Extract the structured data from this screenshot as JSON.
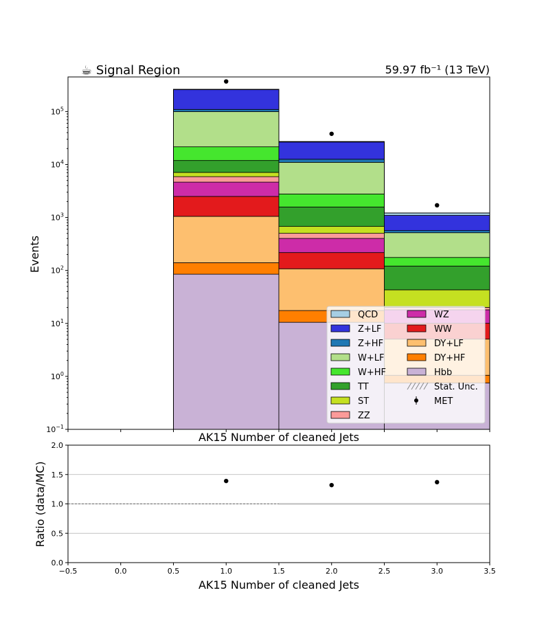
{
  "chart_data": [
    {
      "type": "bar",
      "stacked": true,
      "log_scale": true,
      "title": "☕ Signal Region",
      "lumi": "59.97 fb⁻¹ (13 TeV)",
      "xlabel": "AK15 Number of cleaned Jets",
      "ylabel": "Events",
      "ylim": [
        0.1,
        450000
      ],
      "yticks": [
        "10⁻¹",
        "10⁰",
        "10¹",
        "10²",
        "10³",
        "10⁴",
        "10⁵"
      ],
      "bin_edges": [
        0.5,
        1.5,
        2.5,
        3.5
      ],
      "bin_centers": [
        1,
        2,
        3
      ],
      "series": [
        {
          "name": "Hbb",
          "color": "#c9b2d6",
          "values": [
            85,
            10.5,
            0.75
          ]
        },
        {
          "name": "DY+HF",
          "color": "#ff7f00",
          "values": [
            55,
            7,
            0.3
          ]
        },
        {
          "name": "DY+LF",
          "color": "#fdbf6f",
          "values": [
            910,
            90,
            4.0
          ]
        },
        {
          "name": "WW",
          "color": "#e31a1c",
          "values": [
            1450,
            110,
            5.0
          ]
        },
        {
          "name": "WZ",
          "color": "#cd2ca8",
          "values": [
            2150,
            185,
            8.0
          ]
        },
        {
          "name": "ZZ",
          "color": "#fb9a99",
          "values": [
            1250,
            100,
            2.0
          ]
        },
        {
          "name": "ST",
          "color": "#c5e021",
          "values": [
            1200,
            175,
            23
          ]
        },
        {
          "name": "TT",
          "color": "#33a02c",
          "values": [
            4800,
            900,
            78
          ]
        },
        {
          "name": "W+HF",
          "color": "#45e62e",
          "values": [
            9700,
            1200,
            55
          ]
        },
        {
          "name": "W+LF",
          "color": "#b2df8a",
          "values": [
            78000,
            8200,
            340
          ]
        },
        {
          "name": "Z+HF",
          "color": "#1f78b4",
          "values": [
            10000,
            1600,
            50
          ]
        },
        {
          "name": "Z+LF",
          "color": "#3333dd",
          "values": [
            150000,
            14000,
            530
          ]
        },
        {
          "name": "QCD",
          "color": "#a6cee3",
          "values": [
            3000,
            500,
            120
          ]
        }
      ],
      "data": {
        "name": "MET",
        "values": [
          370000,
          38000,
          1700
        ]
      },
      "legend": {
        "placement": "lower-right",
        "columns": [
          [
            "QCD",
            "Z+LF",
            "Z+HF",
            "W+LF",
            "W+HF",
            "TT",
            "ST",
            "ZZ"
          ],
          [
            "WZ",
            "WW",
            "DY+LF",
            "DY+HF",
            "Hbb",
            "Stat. Unc.",
            "MET"
          ]
        ]
      }
    },
    {
      "type": "scatter",
      "xlabel": "AK15 Number of cleaned Jets",
      "ylabel": "Ratio (data/MC)",
      "xlim": [
        -0.5,
        3.5
      ],
      "ylim": [
        0.0,
        2.0
      ],
      "xticks": [
        "−0.5",
        "0.0",
        "0.5",
        "1.0",
        "1.5",
        "2.0",
        "2.5",
        "3.0",
        "3.5"
      ],
      "yticks": [
        "0.0",
        "0.5",
        "1.0",
        "1.5",
        "2.0"
      ],
      "grid": true,
      "x": [
        1,
        2,
        3
      ],
      "y": [
        1.39,
        1.32,
        1.37
      ]
    }
  ]
}
